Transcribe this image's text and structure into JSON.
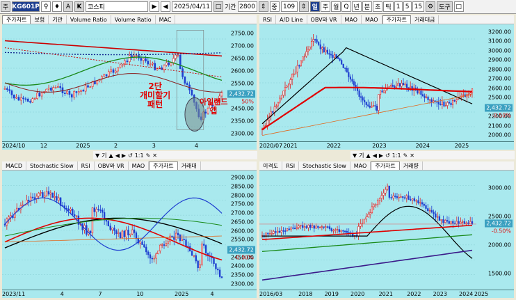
{
  "toolbar": {
    "icon_box": "주",
    "symbol_code": "KG601P",
    "a_label": "A",
    "k_label": "K",
    "symbol_name": "코스피",
    "date": "2025/04/11",
    "period_label": "기간",
    "period_value": "2800",
    "zoom_label": "중",
    "zoom_value": "109",
    "interval_buttons": [
      "일",
      "주",
      "월",
      "Q",
      "년",
      "분",
      "초",
      "틱",
      "1",
      "5",
      "15"
    ],
    "tools_label": "도구",
    "pin_label": "□"
  },
  "panels": {
    "top_left": {
      "tabs": [
        "주가차트",
        "보험",
        "기관",
        "Volume Ratio",
        "Volume Ratio",
        "MAC"
      ],
      "y_labels": [
        "2750.00",
        "2700.00",
        "2650.00",
        "2600.00",
        "2550.00",
        "2500.00",
        "2450.00",
        "2350.00",
        "2300.00"
      ],
      "price_badge": "2,432.72",
      "percent": "50%",
      "x_labels": [
        "2024/10",
        "12",
        "2025",
        "2",
        "3",
        "4"
      ],
      "annotation_1": "2단\n개미할기\n패턴",
      "annotation_2": "아일랜드\n갭"
    },
    "top_right": {
      "tabs": [
        "RSI",
        "A/D Line",
        "OBV와 VR",
        "MAO",
        "MAO",
        "주가차트",
        "거래대금"
      ],
      "y_labels": [
        "3200.00",
        "3100.00",
        "3000.00",
        "2900.00",
        "2800.00",
        "2700.00",
        "2600.00",
        "2500.00",
        "2300.00",
        "2200.00",
        "2100.00",
        "2000.00"
      ],
      "price_badge": "2,432.72",
      "percent": "-0.50%",
      "x_labels": [
        "2020/07",
        "2021",
        "2022",
        "2023",
        "2024",
        "2025"
      ]
    },
    "bottom_left": {
      "tabs": [
        "MACD",
        "Stochastic Slow",
        "RSI",
        "OBV와 VR",
        "MAO",
        "주가차트",
        "거래대"
      ],
      "y_labels": [
        "2900.00",
        "2850.00",
        "2800.00",
        "2750.00",
        "2700.00",
        "2650.00",
        "2600.00",
        "2550.00",
        "2500.00",
        "2450.00",
        "2400.00",
        "2350.00",
        "2300.00"
      ],
      "price_badge": "2,432.72",
      "percent": "-0.50%",
      "x_labels": [
        "2023/11",
        "4",
        "7",
        "10",
        "2025",
        "4"
      ]
    },
    "bottom_right": {
      "tabs": [
        "이격도",
        "RSI",
        "Stochastic Slow",
        "MAO",
        "주가차트",
        "거래량"
      ],
      "y_labels": [
        "3000.00",
        "2500.00",
        "2000.00",
        "1500.00"
      ],
      "price_badge": "2,432.72",
      "percent": "-0.50%",
      "x_labels": [
        "2016/03",
        "2018",
        "2019",
        "2020",
        "2021",
        "2022",
        "2023",
        "2024",
        "2025"
      ]
    }
  },
  "mini_toolbar": {
    "left": "기",
    "ratio": "1:1",
    "alt": "기"
  }
}
